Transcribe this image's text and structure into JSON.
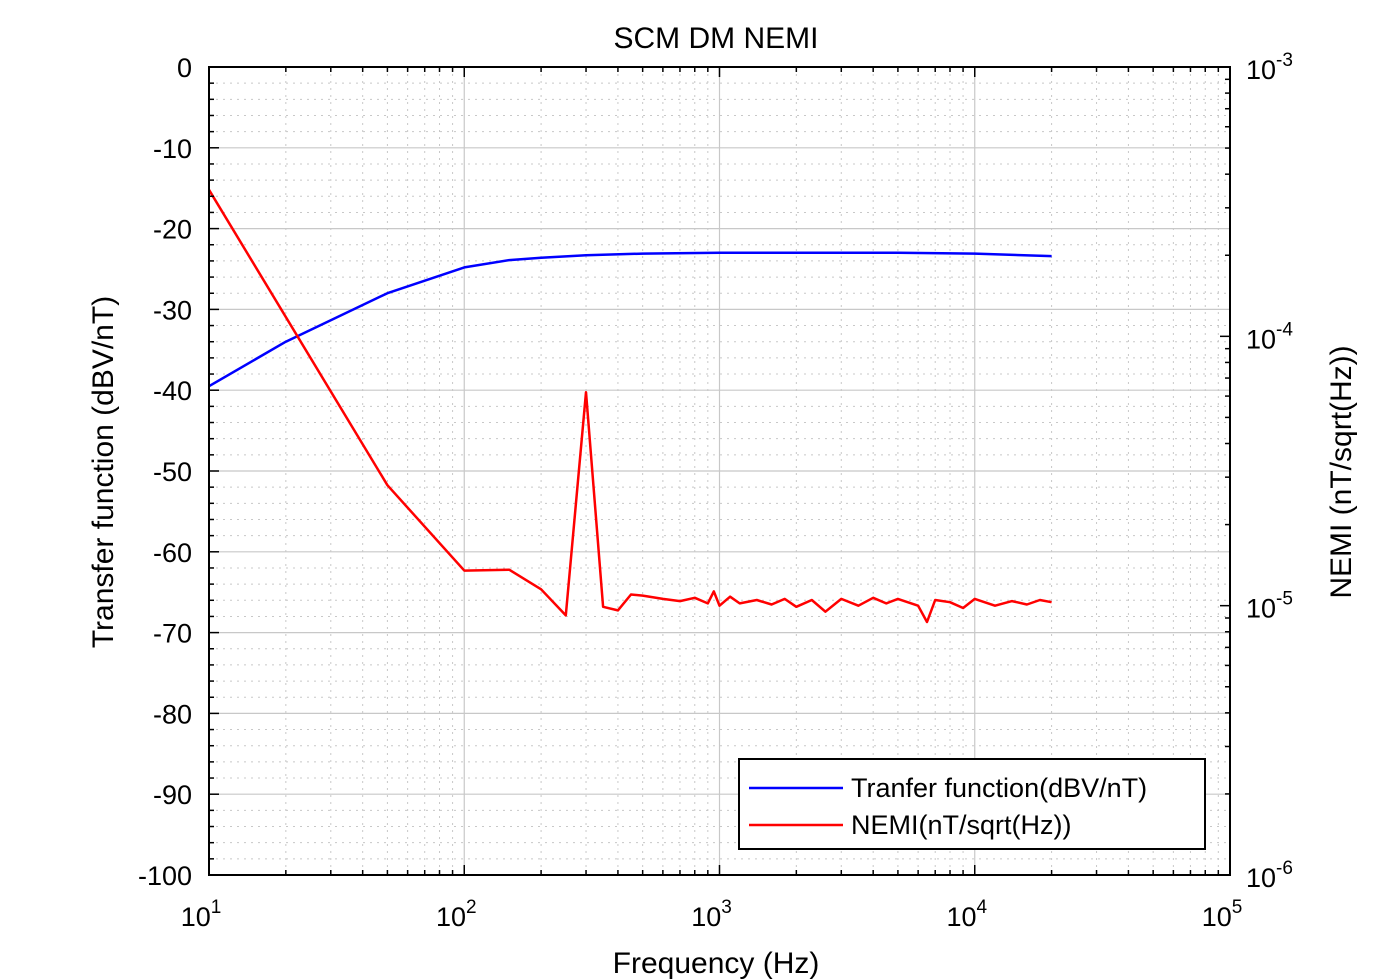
{
  "chart_data": {
    "type": "line",
    "title": "SCM DM NEMI",
    "xlabel": "Frequency (Hz)",
    "ylabel_left": "Transfer function (dBV/nT)",
    "ylabel_right": "NEMI (nT/sqrt(Hz))",
    "x_scale": "log",
    "xlim": [
      10,
      100000
    ],
    "ylim_left": [
      -100,
      0
    ],
    "ylim_right": [
      1e-06,
      0.001
    ],
    "y_right_scale": "log",
    "x_ticks": [
      {
        "base": "10",
        "exp": "1"
      },
      {
        "base": "10",
        "exp": "2"
      },
      {
        "base": "10",
        "exp": "3"
      },
      {
        "base": "10",
        "exp": "4"
      },
      {
        "base": "10",
        "exp": "5"
      }
    ],
    "y_left_ticks": [
      "0",
      "-10",
      "-20",
      "-30",
      "-40",
      "-50",
      "-60",
      "-70",
      "-80",
      "-90",
      "-100"
    ],
    "y_right_ticks": [
      {
        "base": "10",
        "exp": "-3"
      },
      {
        "base": "10",
        "exp": "-4"
      },
      {
        "base": "10",
        "exp": "-5"
      },
      {
        "base": "10",
        "exp": "-6"
      }
    ],
    "grid": "on (major and minor)",
    "legend_position": "bottom-right",
    "series": [
      {
        "name": "Tranfer function(dBV/nT)",
        "color": "#0000ff",
        "axis": "left",
        "x": [
          10,
          20,
          50,
          100,
          150,
          200,
          300,
          500,
          1000,
          2000,
          5000,
          10000,
          20000
        ],
        "y": [
          -39.5,
          -34,
          -28,
          -24.8,
          -23.9,
          -23.6,
          -23.3,
          -23.1,
          -23.0,
          -23.0,
          -23.0,
          -23.1,
          -23.4
        ]
      },
      {
        "name": "NEMI(nT/sqrt(Hz))",
        "color": "#ff0000",
        "axis": "right",
        "x": [
          10,
          50,
          100,
          150,
          200,
          250,
          300,
          350,
          400,
          450,
          500,
          600,
          700,
          800,
          900,
          950,
          1000,
          1100,
          1200,
          1400,
          1600,
          1800,
          2000,
          2300,
          2600,
          3000,
          3500,
          4000,
          4500,
          5000,
          6000,
          6500,
          7000,
          8000,
          9000,
          10000,
          12000,
          14000,
          16000,
          18000,
          20000
        ],
        "y": [
          0.00035,
          2.8e-05,
          1.35e-05,
          1.36e-05,
          1.15e-05,
          9.2e-06,
          6.2e-05,
          9.9e-06,
          9.6e-06,
          1.1e-05,
          1.09e-05,
          1.06e-05,
          1.04e-05,
          1.07e-05,
          1.02e-05,
          1.13e-05,
          1e-05,
          1.08e-05,
          1.02e-05,
          1.05e-05,
          1.01e-05,
          1.06e-05,
          9.9e-06,
          1.05e-05,
          9.5e-06,
          1.06e-05,
          1e-05,
          1.07e-05,
          1.02e-05,
          1.06e-05,
          1e-05,
          8.7e-06,
          1.05e-05,
          1.03e-05,
          9.8e-06,
          1.06e-05,
          1e-05,
          1.04e-05,
          1.01e-05,
          1.05e-05,
          1.03e-05
        ]
      }
    ]
  }
}
